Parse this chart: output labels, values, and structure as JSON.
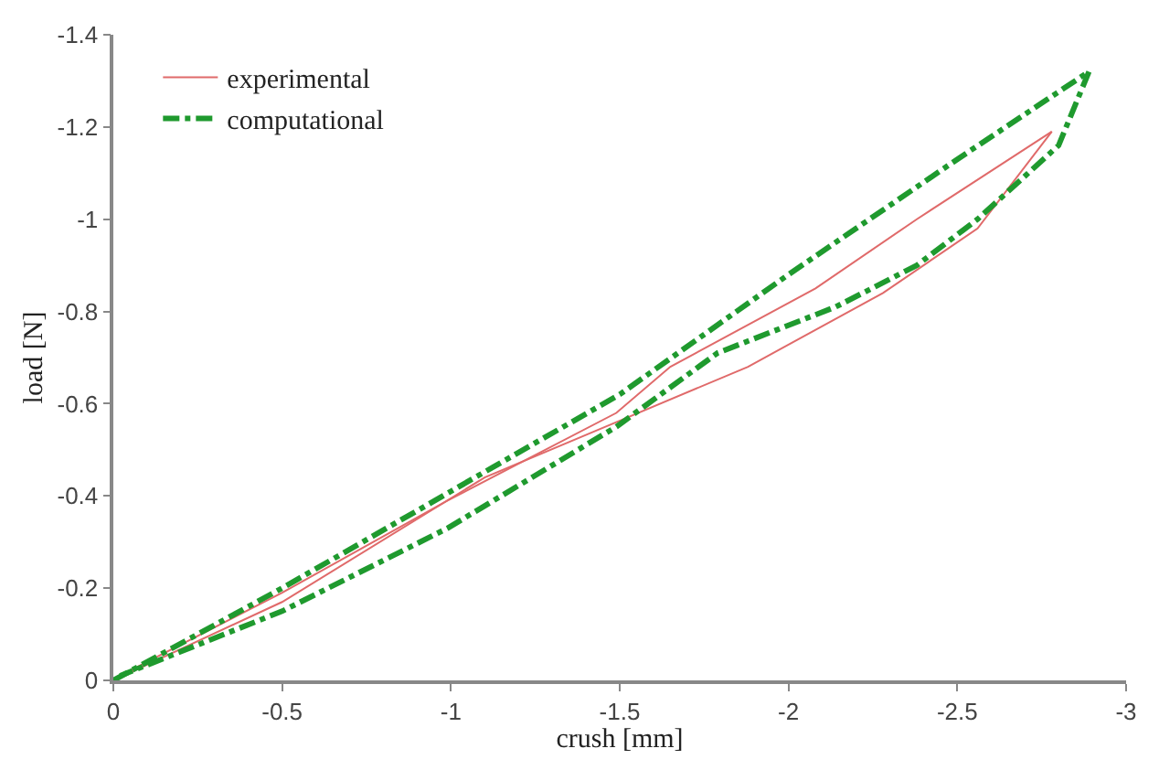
{
  "chart_data": {
    "type": "line",
    "xlabel": "crush [mm]",
    "ylabel": "load [N]",
    "xlim": [
      0,
      -3
    ],
    "xticks": [
      0,
      -0.5,
      -1,
      -1.5,
      -2,
      -2.5,
      -3
    ],
    "ylim": [
      0,
      -1.4
    ],
    "yticks": [
      0,
      -0.2,
      -0.4,
      -0.6,
      -0.8,
      -1.0,
      -1.2,
      -1.4
    ],
    "legend": "top left",
    "marker": "none",
    "series": [
      {
        "name": "experimental",
        "color": "#e06a6a",
        "line_style": "solid",
        "x": [
          0,
          -0.5,
          -1.1,
          -1.49,
          -1.88,
          -1.98,
          -2.28,
          -2.56,
          -2.78
        ],
        "values": [
          0,
          -0.17,
          -0.44,
          -0.56,
          -0.68,
          -0.72,
          -0.84,
          -0.98,
          -1.19
        ]
      },
      {
        "color": "#e06a6a",
        "line_style": "solid",
        "x": [
          -2.78,
          -2.38,
          -2.08,
          -1.65,
          -1.49,
          -0.99,
          -0.5,
          -0.02
        ],
        "values": [
          -1.19,
          -1.0,
          -0.85,
          -0.68,
          -0.58,
          -0.39,
          -0.19,
          -0.01
        ]
      },
      {
        "name": "computational",
        "color": "#1f9a2e",
        "line_style": "dashdot",
        "x": [
          0,
          -0.5,
          -1,
          -1.5,
          -2,
          -2.5,
          -2.89
        ],
        "values": [
          0,
          -0.2,
          -0.41,
          -0.62,
          -0.88,
          -1.13,
          -1.32
        ]
      },
      {
        "color": "#1f9a2e",
        "line_style": "dashdot",
        "x": [
          -2.89,
          -2.8,
          -2.56,
          -2.38,
          -2.14,
          -1.79,
          -1.49,
          -0.99,
          -0.5,
          -0.02
        ],
        "values": [
          -1.32,
          -1.16,
          -1.0,
          -0.9,
          -0.81,
          -0.71,
          -0.55,
          -0.33,
          -0.15,
          -0.01
        ]
      }
    ]
  }
}
